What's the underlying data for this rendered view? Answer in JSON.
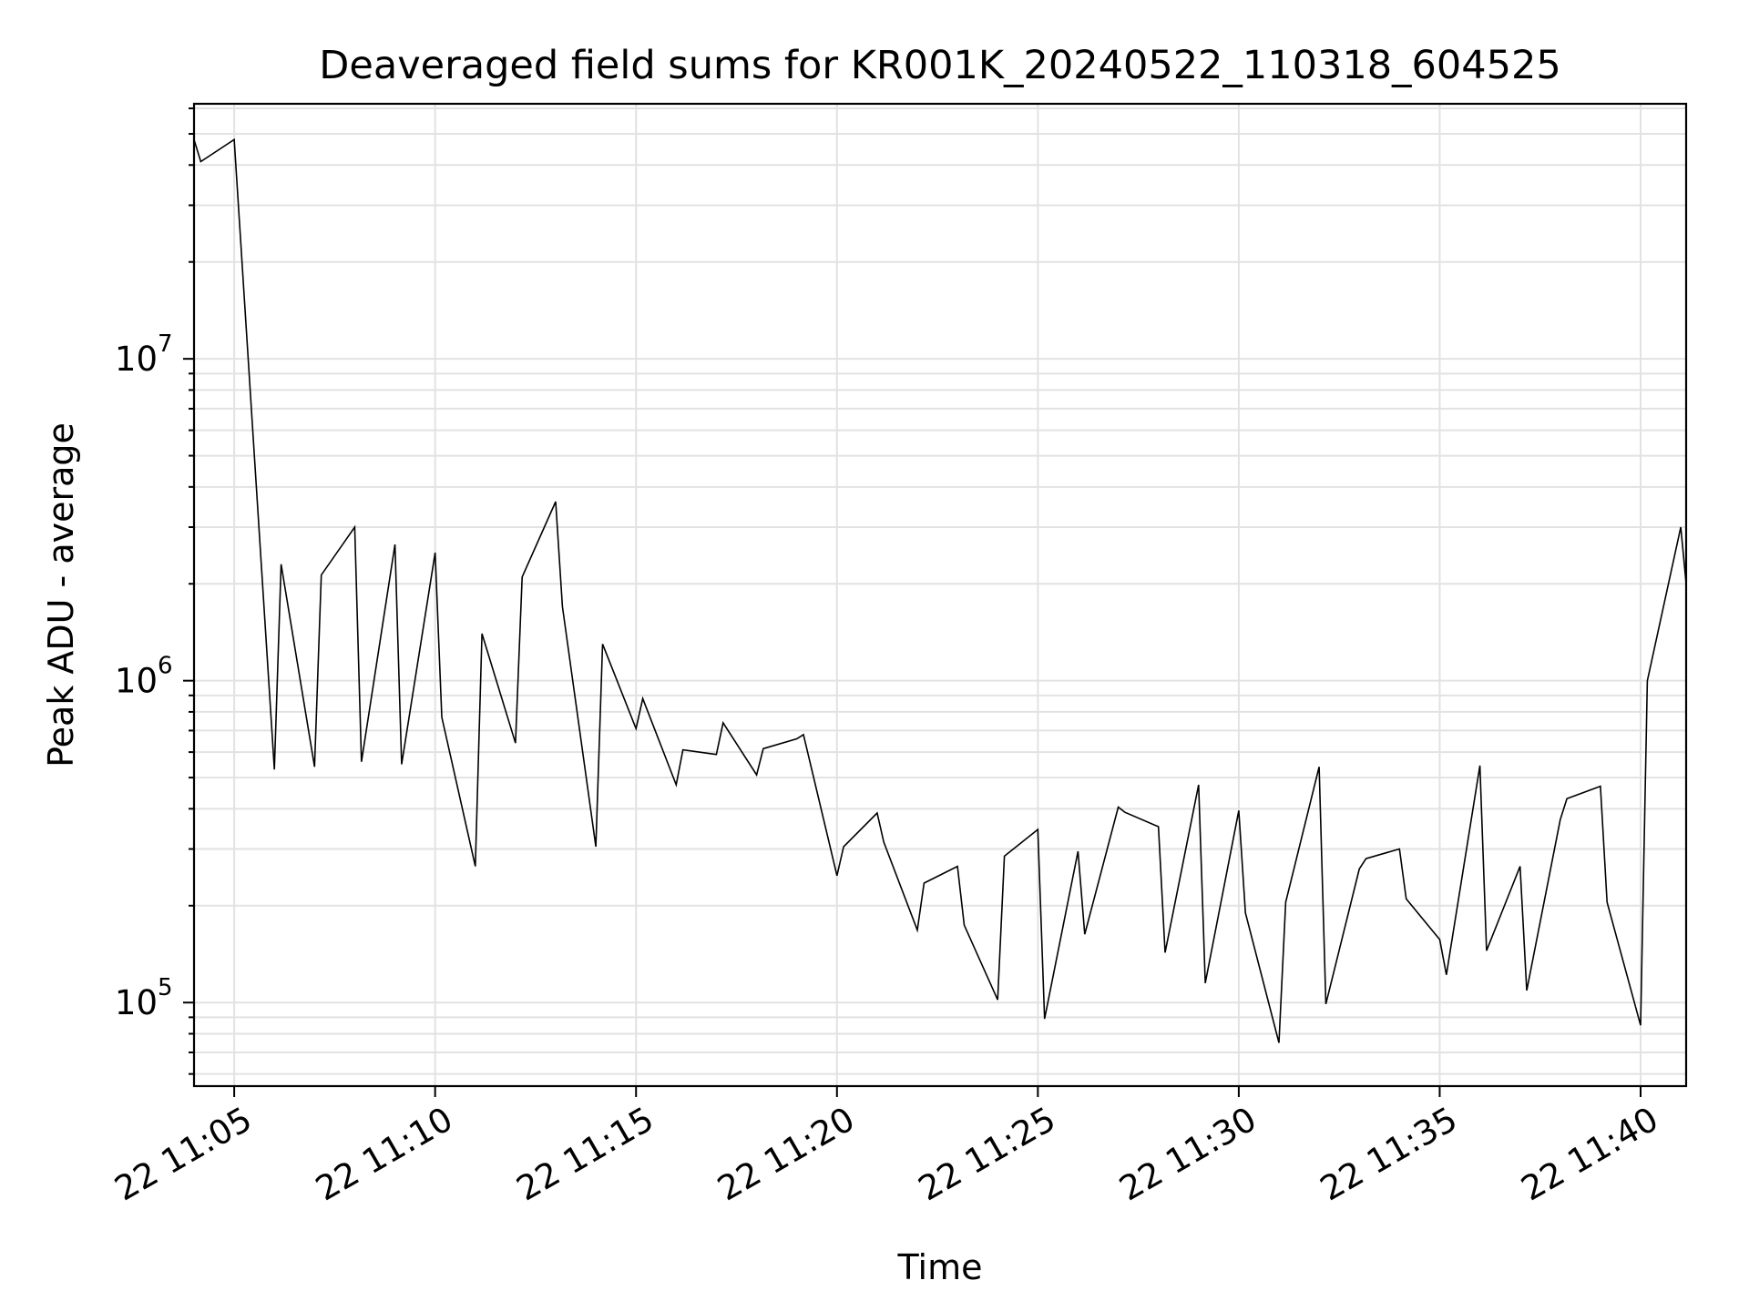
{
  "chart_data": {
    "type": "line",
    "title": "Deaveraged field sums for KR001K_20240522_110318_604525",
    "xlabel": "Time",
    "ylabel": "Peak ADU - average",
    "yscale": "log",
    "grid": true,
    "x_tick_labels": [
      "22 11:05",
      "22 11:10",
      "22 11:15",
      "22 11:20",
      "22 11:25",
      "22 11:30",
      "22 11:35",
      "22 11:40"
    ],
    "y_tick_labels": [
      {
        "base": "10",
        "exp": "5"
      },
      {
        "base": "10",
        "exp": "6"
      },
      {
        "base": "10",
        "exp": "7"
      }
    ],
    "xlim": [
      "2024-05-22 11:04:00",
      "2024-05-22 11:41:08"
    ],
    "ylim": [
      55000,
      62000000
    ],
    "series": [
      {
        "color": "#000000",
        "x": [
          "2024-05-22 11:04:00",
          "2024-05-22 11:04:10",
          "2024-05-22 11:05:00",
          "2024-05-22 11:06:00",
          "2024-05-22 11:06:10",
          "2024-05-22 11:07:00",
          "2024-05-22 11:07:10",
          "2024-05-22 11:08:00",
          "2024-05-22 11:08:10",
          "2024-05-22 11:09:00",
          "2024-05-22 11:09:10",
          "2024-05-22 11:10:00",
          "2024-05-22 11:10:10",
          "2024-05-22 11:11:00",
          "2024-05-22 11:11:10",
          "2024-05-22 11:12:00",
          "2024-05-22 11:12:10",
          "2024-05-22 11:13:00",
          "2024-05-22 11:13:10",
          "2024-05-22 11:14:00",
          "2024-05-22 11:14:10",
          "2024-05-22 11:15:00",
          "2024-05-22 11:15:10",
          "2024-05-22 11:16:00",
          "2024-05-22 11:16:10",
          "2024-05-22 11:17:00",
          "2024-05-22 11:17:10",
          "2024-05-22 11:18:00",
          "2024-05-22 11:18:10",
          "2024-05-22 11:19:00",
          "2024-05-22 11:19:10",
          "2024-05-22 11:20:00",
          "2024-05-22 11:20:10",
          "2024-05-22 11:21:00",
          "2024-05-22 11:21:10",
          "2024-05-22 11:22:00",
          "2024-05-22 11:22:10",
          "2024-05-22 11:23:00",
          "2024-05-22 11:23:10",
          "2024-05-22 11:24:00",
          "2024-05-22 11:24:10",
          "2024-05-22 11:25:00",
          "2024-05-22 11:25:10",
          "2024-05-22 11:26:00",
          "2024-05-22 11:26:10",
          "2024-05-22 11:27:00",
          "2024-05-22 11:27:10",
          "2024-05-22 11:28:00",
          "2024-05-22 11:28:10",
          "2024-05-22 11:29:00",
          "2024-05-22 11:29:10",
          "2024-05-22 11:30:00",
          "2024-05-22 11:30:10",
          "2024-05-22 11:31:00",
          "2024-05-22 11:31:10",
          "2024-05-22 11:32:00",
          "2024-05-22 11:32:10",
          "2024-05-22 11:33:00",
          "2024-05-22 11:33:10",
          "2024-05-22 11:34:00",
          "2024-05-22 11:34:10",
          "2024-05-22 11:35:00",
          "2024-05-22 11:35:10",
          "2024-05-22 11:36:00",
          "2024-05-22 11:36:10",
          "2024-05-22 11:37:00",
          "2024-05-22 11:37:10",
          "2024-05-22 11:38:00",
          "2024-05-22 11:38:10",
          "2024-05-22 11:39:00",
          "2024-05-22 11:39:10",
          "2024-05-22 11:40:00",
          "2024-05-22 11:40:10",
          "2024-05-22 11:41:00",
          "2024-05-22 11:41:08"
        ],
        "y": [
          48000000,
          41000000,
          48000000,
          530000,
          2300000,
          540000,
          2130000,
          3000000,
          560000,
          2650000,
          550000,
          2500000,
          770000,
          265000,
          1400000,
          640000,
          2100000,
          3600000,
          1700000,
          305000,
          1300000,
          710000,
          880000,
          475000,
          610000,
          590000,
          740000,
          510000,
          615000,
          660000,
          680000,
          248000,
          305000,
          388000,
          315000,
          168000,
          235000,
          265000,
          174000,
          102000,
          285000,
          345000,
          89000,
          295000,
          163000,
          405000,
          390000,
          352000,
          143000,
          475000,
          115000,
          395000,
          190000,
          75000,
          205000,
          540000,
          99000,
          260000,
          280000,
          300000,
          210000,
          157000,
          122000,
          545000,
          145000,
          265000,
          109000,
          370000,
          430000,
          470000,
          205000,
          85000,
          1000000,
          3000000,
          2000000
        ]
      }
    ]
  }
}
